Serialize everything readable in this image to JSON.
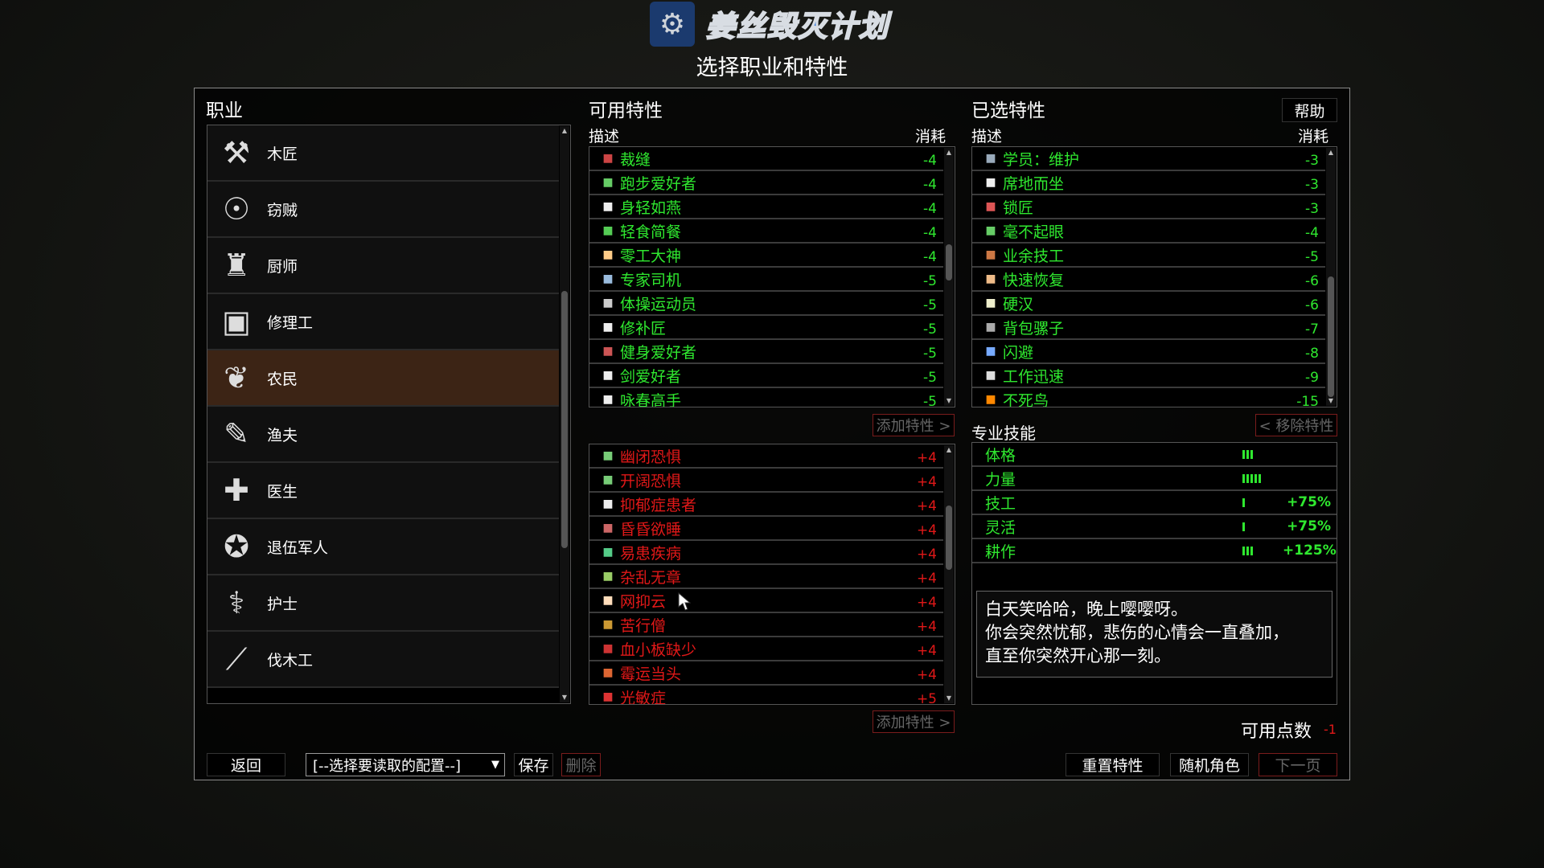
{
  "logo": {
    "icon": "steam-icon",
    "name": "姜丝毁灭计划"
  },
  "subtitle": "选择职业和特性",
  "colors": {
    "good": "#2fe82f",
    "bad": "#e01818",
    "selected_job": "#3c2415"
  },
  "jobs": {
    "title": "职业",
    "selected": "农民",
    "items": [
      {
        "label": "木匠",
        "icon": "hammer-icon",
        "glyph": "⚒"
      },
      {
        "label": "窃贼",
        "icon": "fingerprint-icon",
        "glyph": "☉"
      },
      {
        "label": "厨师",
        "icon": "chef-hat-icon",
        "glyph": "♜"
      },
      {
        "label": "修理工",
        "icon": "toolbox-icon",
        "glyph": "▣"
      },
      {
        "label": "农民",
        "icon": "corn-icon",
        "glyph": "❦"
      },
      {
        "label": "渔夫",
        "icon": "fishing-lure-icon",
        "glyph": "✎"
      },
      {
        "label": "医生",
        "icon": "medical-cross-icon",
        "glyph": "✚"
      },
      {
        "label": "退伍军人",
        "icon": "military-seal-icon",
        "glyph": "✪"
      },
      {
        "label": "护士",
        "icon": "nurse-badge-icon",
        "glyph": "⚕"
      },
      {
        "label": "伐木工",
        "icon": "axe-icon",
        "glyph": "⟋"
      }
    ]
  },
  "available": {
    "title": "可用特性",
    "col_desc": "描述",
    "col_cost": "消耗",
    "add_label": "添加特性 >",
    "positive": [
      {
        "label": "裁缝",
        "cost": "-4",
        "icon": "thread-spool-icon",
        "color": "#c44"
      },
      {
        "label": "跑步爱好者",
        "cost": "-4",
        "icon": "sneaker-icon",
        "color": "#6c6"
      },
      {
        "label": "身轻如燕",
        "cost": "-4",
        "icon": "swan-icon",
        "color": "#eee"
      },
      {
        "label": "轻食简餐",
        "cost": "-4",
        "icon": "apple-icon",
        "color": "#5c5"
      },
      {
        "label": "零工大神",
        "cost": "-4",
        "icon": "worker-icon",
        "color": "#fc8"
      },
      {
        "label": "专家司机",
        "cost": "-5",
        "icon": "license-card-icon",
        "color": "#9bd"
      },
      {
        "label": "体操运动员",
        "cost": "-5",
        "icon": "gymnast-icon",
        "color": "#ccc"
      },
      {
        "label": "修补匠",
        "cost": "-5",
        "icon": "needle-icon",
        "color": "#eee"
      },
      {
        "label": "健身爱好者",
        "cost": "-5",
        "icon": "punching-bag-icon",
        "color": "#c55"
      },
      {
        "label": "剑爱好者",
        "cost": "-5",
        "icon": "fencer-icon",
        "color": "#eee"
      },
      {
        "label": "咏春高手",
        "cost": "-5",
        "icon": "martial-arts-icon",
        "color": "#eee"
      }
    ],
    "negative": [
      {
        "label": "幽闭恐惧",
        "cost": "+4",
        "icon": "claustrophobia-icon",
        "color": "#7c7"
      },
      {
        "label": "开阔恐惧",
        "cost": "+4",
        "icon": "agoraphobia-icon",
        "color": "#7c7"
      },
      {
        "label": "抑郁症患者",
        "cost": "+4",
        "icon": "depression-icon",
        "color": "#eee"
      },
      {
        "label": "昏昏欲睡",
        "cost": "+4",
        "icon": "sleepy-zzz-icon",
        "color": "#c66"
      },
      {
        "label": "易患疾病",
        "cost": "+4",
        "icon": "germ-icon",
        "color": "#5c8"
      },
      {
        "label": "杂乱无章",
        "cost": "+4",
        "icon": "disorganized-icon",
        "color": "#9c6"
      },
      {
        "label": "网抑云",
        "cost": "+4",
        "icon": "sad-face-hand-icon",
        "color": "#fdb"
      },
      {
        "label": "苦行僧",
        "cost": "+4",
        "icon": "ascetic-icon",
        "color": "#c93"
      },
      {
        "label": "血小板缺少",
        "cost": "+4",
        "icon": "blood-drop-icon",
        "color": "#c33"
      },
      {
        "label": "霉运当头",
        "cost": "+4",
        "icon": "clover-icon",
        "color": "#d63"
      },
      {
        "label": "光敏症",
        "cost": "+5",
        "icon": "sun-icon",
        "color": "#d33"
      }
    ]
  },
  "chosen": {
    "title": "已选特性",
    "help_label": "帮助",
    "col_desc": "描述",
    "col_cost": "消耗",
    "remove_label": "< 移除特性",
    "items": [
      {
        "label": "学员：维护",
        "cost": "-3",
        "icon": "wrench-plus-icon",
        "color": "#9ab"
      },
      {
        "label": "席地而坐",
        "cost": "-3",
        "icon": "sitting-person-icon",
        "color": "#eee"
      },
      {
        "label": "锁匠",
        "cost": "-3",
        "icon": "key-icon",
        "color": "#d55"
      },
      {
        "label": "毫不起眼",
        "cost": "-4",
        "icon": "cap-icon",
        "color": "#6c6"
      },
      {
        "label": "业余技工",
        "cost": "-5",
        "icon": "screwdriver-icon",
        "color": "#c74"
      },
      {
        "label": "快速恢复",
        "cost": "-6",
        "icon": "bandage-icon",
        "color": "#eb8"
      },
      {
        "label": "硬汉",
        "cost": "-6",
        "icon": "tough-guy-icon",
        "color": "#eec"
      },
      {
        "label": "背包骡子",
        "cost": "-7",
        "icon": "mule-icon",
        "color": "#aaa"
      },
      {
        "label": "闪避",
        "cost": "-8",
        "icon": "dodge-icon",
        "color": "#7af"
      },
      {
        "label": "工作迅速",
        "cost": "-9",
        "icon": "stopwatch-icon",
        "color": "#ddd"
      },
      {
        "label": "不死鸟",
        "cost": "-15",
        "icon": "phoenix-icon",
        "color": "#f80"
      }
    ]
  },
  "skills": {
    "title": "专业技能",
    "items": [
      {
        "label": "体格",
        "level": 3,
        "bonus": ""
      },
      {
        "label": "力量",
        "level": 5,
        "bonus": ""
      },
      {
        "label": "技工",
        "level": 1,
        "bonus": "+75%"
      },
      {
        "label": "灵活",
        "level": 1,
        "bonus": "+75%"
      },
      {
        "label": "耕作",
        "level": 3,
        "bonus": "+125%"
      }
    ]
  },
  "points": {
    "label": "可用点数",
    "value": "-1"
  },
  "tooltip": {
    "lines": [
      "白天笑哈哈，晚上嘤嘤呀。",
      "你会突然忧郁，悲伤的心情会一直叠加，",
      "直至你突然开心那一刻。"
    ]
  },
  "bottom": {
    "back": "返回",
    "preset": "[--选择要读取的配置--]",
    "save": "保存",
    "delete": "删除",
    "reset": "重置特性",
    "random": "随机角色",
    "next": "下一页"
  }
}
